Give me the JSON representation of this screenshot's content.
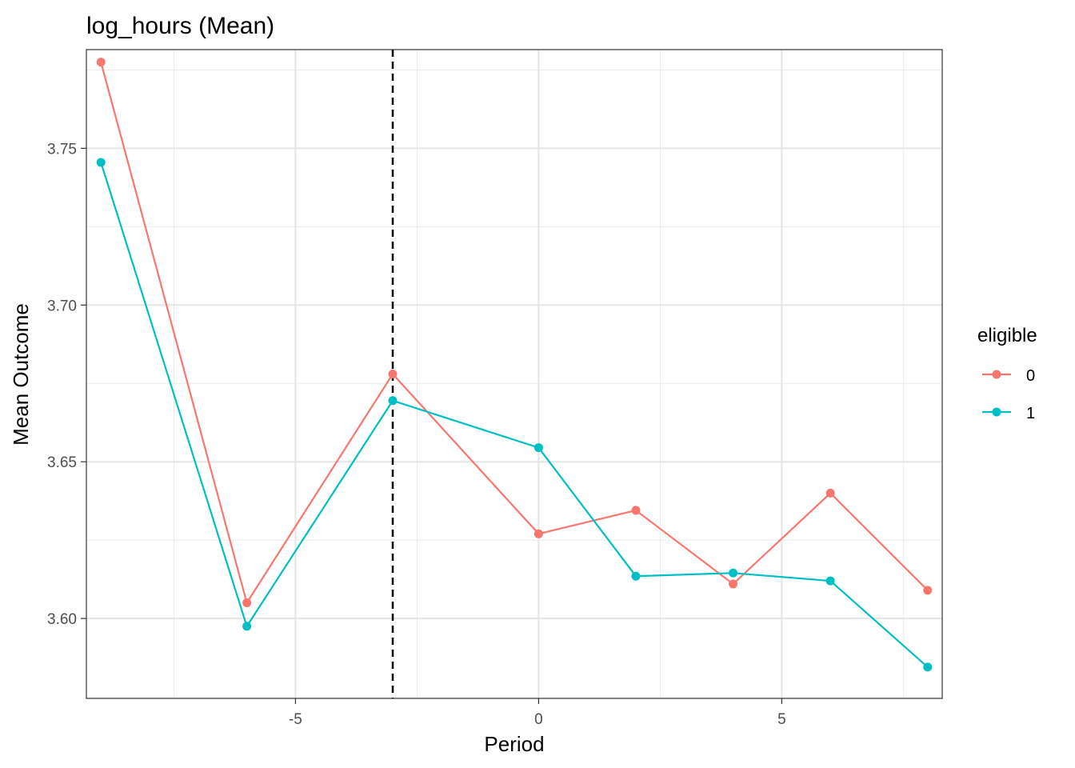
{
  "chart_data": {
    "type": "line",
    "title": "log_hours (Mean)",
    "xlabel": "Period",
    "ylabel": "Mean Outcome",
    "xlim": [
      -9.3,
      8.3
    ],
    "ylim": [
      3.5745,
      3.7815
    ],
    "x_ticks": [
      -5,
      0,
      5
    ],
    "x_tick_labels": [
      "-5",
      "0",
      "5"
    ],
    "y_ticks": [
      3.6,
      3.65,
      3.7,
      3.75
    ],
    "y_tick_labels": [
      "3.60",
      "3.65",
      "3.70",
      "3.75"
    ],
    "grid": true,
    "legend_position": "right",
    "legend_title": "eligible",
    "reference_line": {
      "x": -3,
      "style": "dashed",
      "color": "#000000"
    },
    "x": [
      -9,
      -6,
      -3,
      0,
      2,
      4,
      6,
      8
    ],
    "series": [
      {
        "name": "0",
        "color": "#F8766D",
        "values": [
          3.7775,
          3.605,
          3.678,
          3.627,
          3.6345,
          3.611,
          3.64,
          3.609
        ]
      },
      {
        "name": "1",
        "color": "#00BFC4",
        "values": [
          3.7455,
          3.5975,
          3.6695,
          3.6545,
          3.6135,
          3.6145,
          3.612,
          3.5845
        ]
      }
    ]
  }
}
